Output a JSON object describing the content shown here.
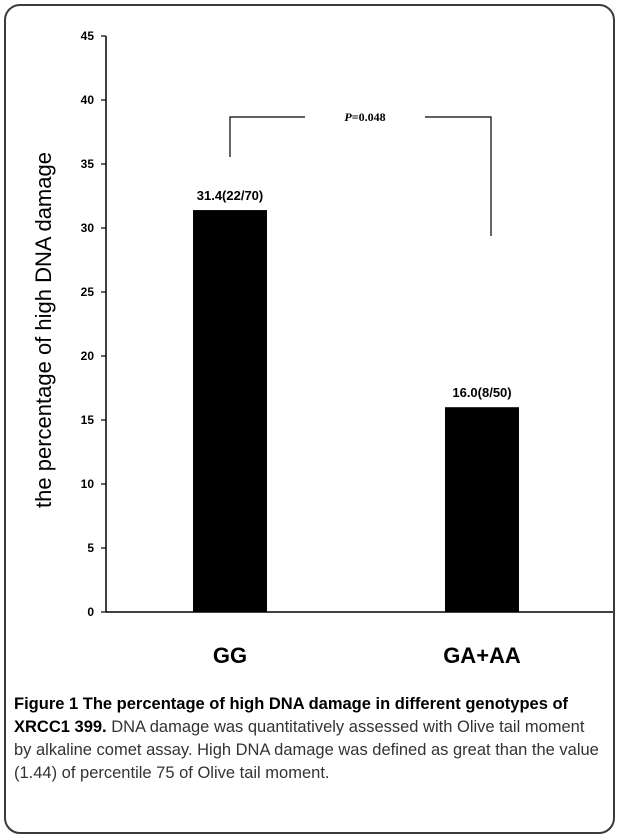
{
  "chart_data": {
    "type": "bar",
    "categories": [
      "GG",
      "GA+AA"
    ],
    "values": [
      31.4,
      16.0
    ],
    "data_labels": [
      "31.4(22/70)",
      "16.0(8/50)"
    ],
    "ylabel": "the percentage of high DNA damage",
    "xlabel": "",
    "ylim": [
      0,
      45
    ],
    "yticks": [
      0,
      5,
      10,
      15,
      20,
      25,
      30,
      35,
      40,
      45
    ],
    "bar_color": "#000000",
    "annotation": {
      "p_symbol": "P",
      "p_rest": "=0.048"
    }
  },
  "caption": {
    "bold": "Figure 1 The percentage of high DNA damage in different genotypes of XRCC1 399.",
    "text": " DNA damage was quantitatively assessed with Olive tail moment by alkaline comet assay. High DNA damage was defined as great than the value (1.44) of percentile 75 of Olive tail moment."
  }
}
